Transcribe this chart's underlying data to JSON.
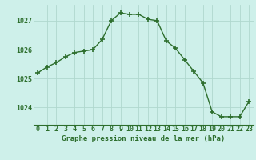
{
  "x": [
    0,
    1,
    2,
    3,
    4,
    5,
    6,
    7,
    8,
    9,
    10,
    11,
    12,
    13,
    14,
    15,
    16,
    17,
    18,
    19,
    20,
    21,
    22,
    23
  ],
  "y": [
    1025.2,
    1025.4,
    1025.55,
    1025.75,
    1025.9,
    1025.95,
    1026.0,
    1026.35,
    1027.0,
    1027.27,
    1027.22,
    1027.22,
    1027.05,
    1027.0,
    1026.3,
    1026.05,
    1025.65,
    1025.25,
    1024.85,
    1023.85,
    1023.68,
    1023.68,
    1023.68,
    1024.2
  ],
  "line_color": "#2d6e2d",
  "marker_color": "#2d6e2d",
  "bg_color": "#cef0ea",
  "grid_color": "#b0d8ce",
  "xlabel": "Graphe pression niveau de la mer (hPa)",
  "ylim": [
    1023.4,
    1027.55
  ],
  "yticks": [
    1024,
    1025,
    1026,
    1027
  ],
  "xticks": [
    0,
    1,
    2,
    3,
    4,
    5,
    6,
    7,
    8,
    9,
    10,
    11,
    12,
    13,
    14,
    15,
    16,
    17,
    18,
    19,
    20,
    21,
    22,
    23
  ],
  "xlabel_fontsize": 6.5,
  "tick_fontsize": 6.0,
  "xlabel_color": "#2d6e2d",
  "tick_color": "#2d6e2d",
  "marker_size": 4,
  "line_width": 1.0
}
